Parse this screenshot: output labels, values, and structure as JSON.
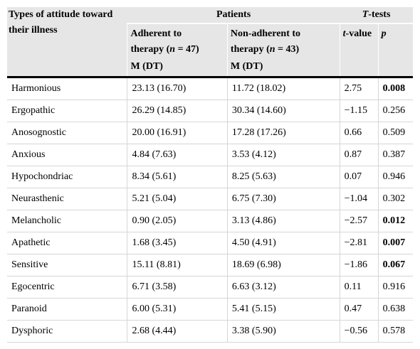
{
  "header": {
    "col1": [
      "Types of attitude toward",
      "their illness"
    ],
    "patients": "Patients",
    "ttests_italic": "T",
    "ttests_rest": "-tests",
    "adherent": {
      "line1": "Adherent to",
      "line2_pre": "therapy (",
      "n": "n",
      "line2_post": " = 47)",
      "stat": "M (DT)"
    },
    "nonadherent": {
      "line1": "Non-adherent to",
      "line2_pre": "therapy (",
      "n": "n",
      "line2_post": " = 43)",
      "stat": "M (DT)"
    },
    "tvalue_italic": "t",
    "tvalue_rest": "-value",
    "p": "p"
  },
  "rows": [
    {
      "type": "Harmonious",
      "adherent": "23.13 (16.70)",
      "nonadherent": "11.72 (18.02)",
      "t": "2.75",
      "p": "0.008",
      "p_bold": true
    },
    {
      "type": "Ergopathic",
      "adherent": "26.29 (14.85)",
      "nonadherent": "30.34 (14.60)",
      "t": "−1.15",
      "p": "0.256",
      "p_bold": false
    },
    {
      "type": "Anosognostic",
      "adherent": "20.00 (16.91)",
      "nonadherent": "17.28 (17.26)",
      "t": "0.66",
      "p": "0.509",
      "p_bold": false
    },
    {
      "type": "Anxious",
      "adherent": "4.84 (7.63)",
      "nonadherent": "3.53 (4.12)",
      "t": "0.87",
      "p": "0.387",
      "p_bold": false
    },
    {
      "type": "Hypochondriac",
      "adherent": "8.34 (5.61)",
      "nonadherent": "8.25 (5.63)",
      "t": "0.07",
      "p": "0.946",
      "p_bold": false
    },
    {
      "type": "Neurasthenic",
      "adherent": "5.21 (5.04)",
      "nonadherent": "6.75 (7.30)",
      "t": "−1.04",
      "p": "0.302",
      "p_bold": false
    },
    {
      "type": "Melancholic",
      "adherent": "0.90 (2.05)",
      "nonadherent": "3.13 (4.86)",
      "t": "−2.57",
      "p": "0.012",
      "p_bold": true
    },
    {
      "type": "Apathetic",
      "adherent": "1.68 (3.45)",
      "nonadherent": "4.50 (4.91)",
      "t": "−2.81",
      "p": "0.007",
      "p_bold": true
    },
    {
      "type": "Sensitive",
      "adherent": "15.11 (8.81)",
      "nonadherent": "18.69 (6.98)",
      "t": "−1.86",
      "p": "0.067",
      "p_bold": true
    },
    {
      "type": "Egocentric",
      "adherent": "6.71 (3.58)",
      "nonadherent": "6.63 (3.12)",
      "t": "0.11",
      "p": "0.916",
      "p_bold": false
    },
    {
      "type": "Paranoid",
      "adherent": "6.00 (5.31)",
      "nonadherent": "5.41 (5.15)",
      "t": "0.47",
      "p": "0.638",
      "p_bold": false
    },
    {
      "type": "Dysphoric",
      "adherent": "2.68 (4.44)",
      "nonadherent": "3.38 (5.90)",
      "t": "−0.56",
      "p": "0.578",
      "p_bold": false
    }
  ]
}
